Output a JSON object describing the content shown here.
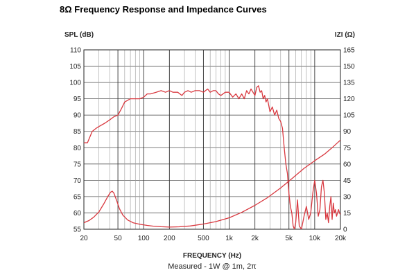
{
  "chart_data": {
    "type": "line",
    "title": "8Ω Frequency Response and Impedance Curves",
    "xlabel": "FREQUENCY (Hz)",
    "xscale": "log",
    "xlim": [
      20,
      20000
    ],
    "x_ticks": [
      {
        "v": 20,
        "label": "20"
      },
      {
        "v": 50,
        "label": "50"
      },
      {
        "v": 100,
        "label": "100"
      },
      {
        "v": 200,
        "label": "200"
      },
      {
        "v": 500,
        "label": "500"
      },
      {
        "v": 1000,
        "label": "1k"
      },
      {
        "v": 2000,
        "label": "2k"
      },
      {
        "v": 5000,
        "label": "5k"
      },
      {
        "v": 10000,
        "label": "10k"
      },
      {
        "v": 20000,
        "label": "20k"
      }
    ],
    "ylabel_left": "SPL (dB)",
    "ylim_left": [
      55,
      110
    ],
    "y_ticks_left": [
      55,
      60,
      65,
      70,
      75,
      80,
      85,
      90,
      95,
      100,
      105,
      110
    ],
    "ylabel_right": "IZI (Ω)",
    "ylim_right": [
      0,
      165
    ],
    "y_ticks_right": [
      0,
      15,
      30,
      45,
      60,
      75,
      90,
      105,
      120,
      135,
      150,
      165
    ],
    "grid": true,
    "note": "Measured - 1W @ 1m, 2π",
    "line_color": "#d9383f",
    "series": [
      {
        "axis": "left",
        "x": [
          20,
          22,
          25,
          28,
          30,
          35,
          40,
          45,
          50,
          55,
          60,
          70,
          80,
          90,
          100,
          110,
          120,
          140,
          160,
          180,
          200,
          220,
          250,
          280,
          300,
          330,
          360,
          400,
          450,
          500,
          560,
          600,
          650,
          700,
          750,
          800,
          900,
          1000,
          1100,
          1200,
          1300,
          1400,
          1500,
          1600,
          1700,
          1800,
          1900,
          2000,
          2100,
          2200,
          2300,
          2400,
          2500,
          2600,
          2700,
          2800,
          2900,
          3000,
          3200,
          3400,
          3600,
          3800,
          4000,
          4200,
          4400,
          4600,
          4800,
          5000,
          5200,
          5400,
          5600,
          5800,
          6000,
          6300,
          6600,
          7000,
          7500,
          8000,
          8500,
          9000,
          9500,
          10000,
          10500,
          11000,
          11500,
          12000,
          12500,
          13000,
          13500,
          14000,
          14500,
          15000,
          15500,
          16000,
          16500,
          17000,
          17500,
          18000,
          18500,
          19000,
          19500,
          20000
        ],
        "values": [
          81.5,
          81.5,
          85,
          86,
          86.5,
          87.5,
          88.5,
          89.5,
          90,
          92,
          94,
          95,
          95,
          95,
          95.5,
          96.5,
          96.5,
          97,
          97.5,
          97,
          97.5,
          97,
          97,
          96,
          97,
          97.5,
          97,
          97.5,
          97.5,
          97,
          98,
          97,
          97.5,
          97.5,
          96.5,
          96,
          97,
          97,
          95.5,
          96.5,
          95,
          96.5,
          95,
          97.5,
          96.5,
          98,
          97,
          96,
          98.5,
          99,
          97,
          97.5,
          95,
          96,
          94,
          95,
          93,
          91,
          92.5,
          90,
          91.5,
          89,
          88,
          86,
          80,
          75,
          72,
          66,
          62,
          60,
          56,
          55,
          57,
          64,
          56,
          55,
          59,
          62,
          58,
          60,
          66,
          70,
          66,
          59,
          61,
          68,
          70,
          66,
          58,
          60,
          57,
          62,
          65,
          58,
          63,
          60,
          61,
          59,
          60,
          61,
          60,
          59.5
        ]
      },
      {
        "axis": "right",
        "x": [
          20,
          23,
          26,
          30,
          34,
          38,
          41,
          43,
          45,
          48,
          52,
          57,
          65,
          75,
          90,
          110,
          130,
          160,
          200,
          260,
          350,
          500,
          700,
          1000,
          1400,
          2000,
          2800,
          4000,
          5500,
          7500,
          10000,
          13000,
          16000,
          20000
        ],
        "values": [
          6,
          8,
          11,
          16,
          23,
          30,
          34,
          35,
          33,
          27,
          19,
          13,
          8.5,
          6,
          4.5,
          3.5,
          2.8,
          2.3,
          2,
          2.2,
          3,
          4.8,
          7,
          10.5,
          15.5,
          22,
          29,
          38,
          47,
          56,
          63,
          69,
          75,
          82
        ]
      }
    ]
  }
}
